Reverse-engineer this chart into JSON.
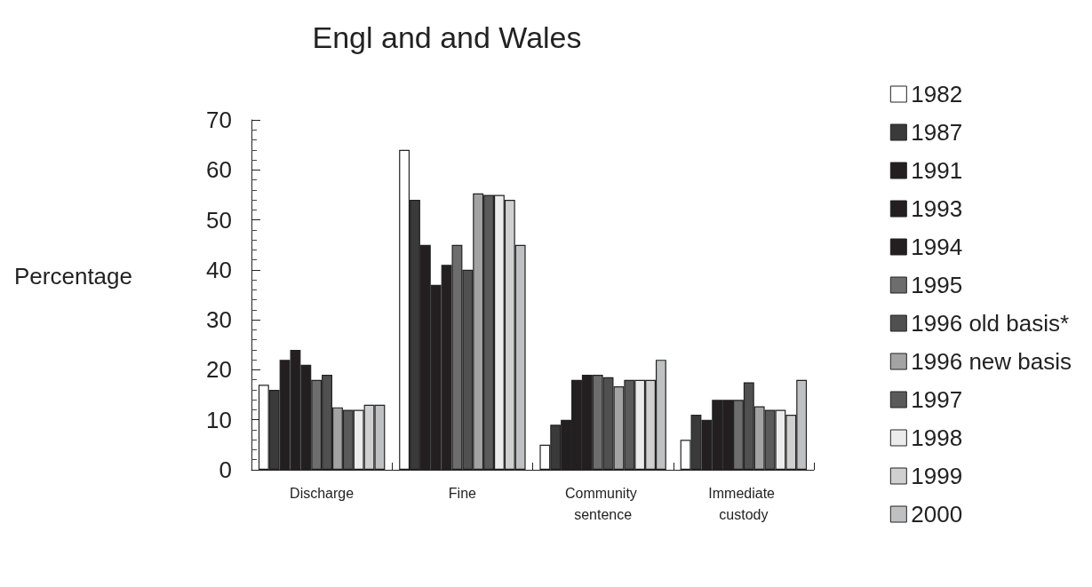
{
  "chart_data": {
    "type": "bar",
    "title": "Engl and and Wales",
    "ylabel": "Percentage",
    "categories": [
      "Discharge",
      "Fine",
      "Community sentence",
      "Immediate custody"
    ],
    "ylim": [
      0,
      70
    ],
    "yticks": [
      0,
      10,
      20,
      30,
      40,
      50,
      60,
      70
    ],
    "grid": false,
    "legend": "right",
    "series": [
      {
        "name": "1982",
        "color": "#ffffff",
        "values": [
          17,
          64,
          5,
          6
        ]
      },
      {
        "name": "1987",
        "color": "#3a3a3a",
        "values": [
          16,
          54,
          9,
          11
        ]
      },
      {
        "name": "1991",
        "color": "#231f20",
        "values": [
          22,
          45,
          10,
          10
        ]
      },
      {
        "name": "1993",
        "color": "#231f20",
        "values": [
          24,
          37,
          18,
          14
        ]
      },
      {
        "name": "1994",
        "color": "#231f20",
        "values": [
          21,
          41,
          19,
          14
        ]
      },
      {
        "name": "1995",
        "color": "#6d6d6d",
        "values": [
          18,
          45,
          19,
          14
        ]
      },
      {
        "name": "1996 old basis*",
        "color": "#505050",
        "values": [
          19,
          40,
          18.5,
          17.5
        ]
      },
      {
        "name": "1996 new basis",
        "color": "#a3a3a3",
        "values": [
          12.5,
          55.3,
          16.7,
          12.7
        ]
      },
      {
        "name": "1997",
        "color": "#5a5a5a",
        "values": [
          12,
          55,
          18,
          12
        ]
      },
      {
        "name": "1998",
        "color": "#ececec",
        "values": [
          12,
          55,
          18,
          12
        ]
      },
      {
        "name": "1999",
        "color": "#d0d0d0",
        "values": [
          13,
          54,
          18,
          11
        ]
      },
      {
        "name": "2000",
        "color": "#bfc0c2",
        "values": [
          13,
          45,
          22,
          18
        ]
      }
    ]
  }
}
